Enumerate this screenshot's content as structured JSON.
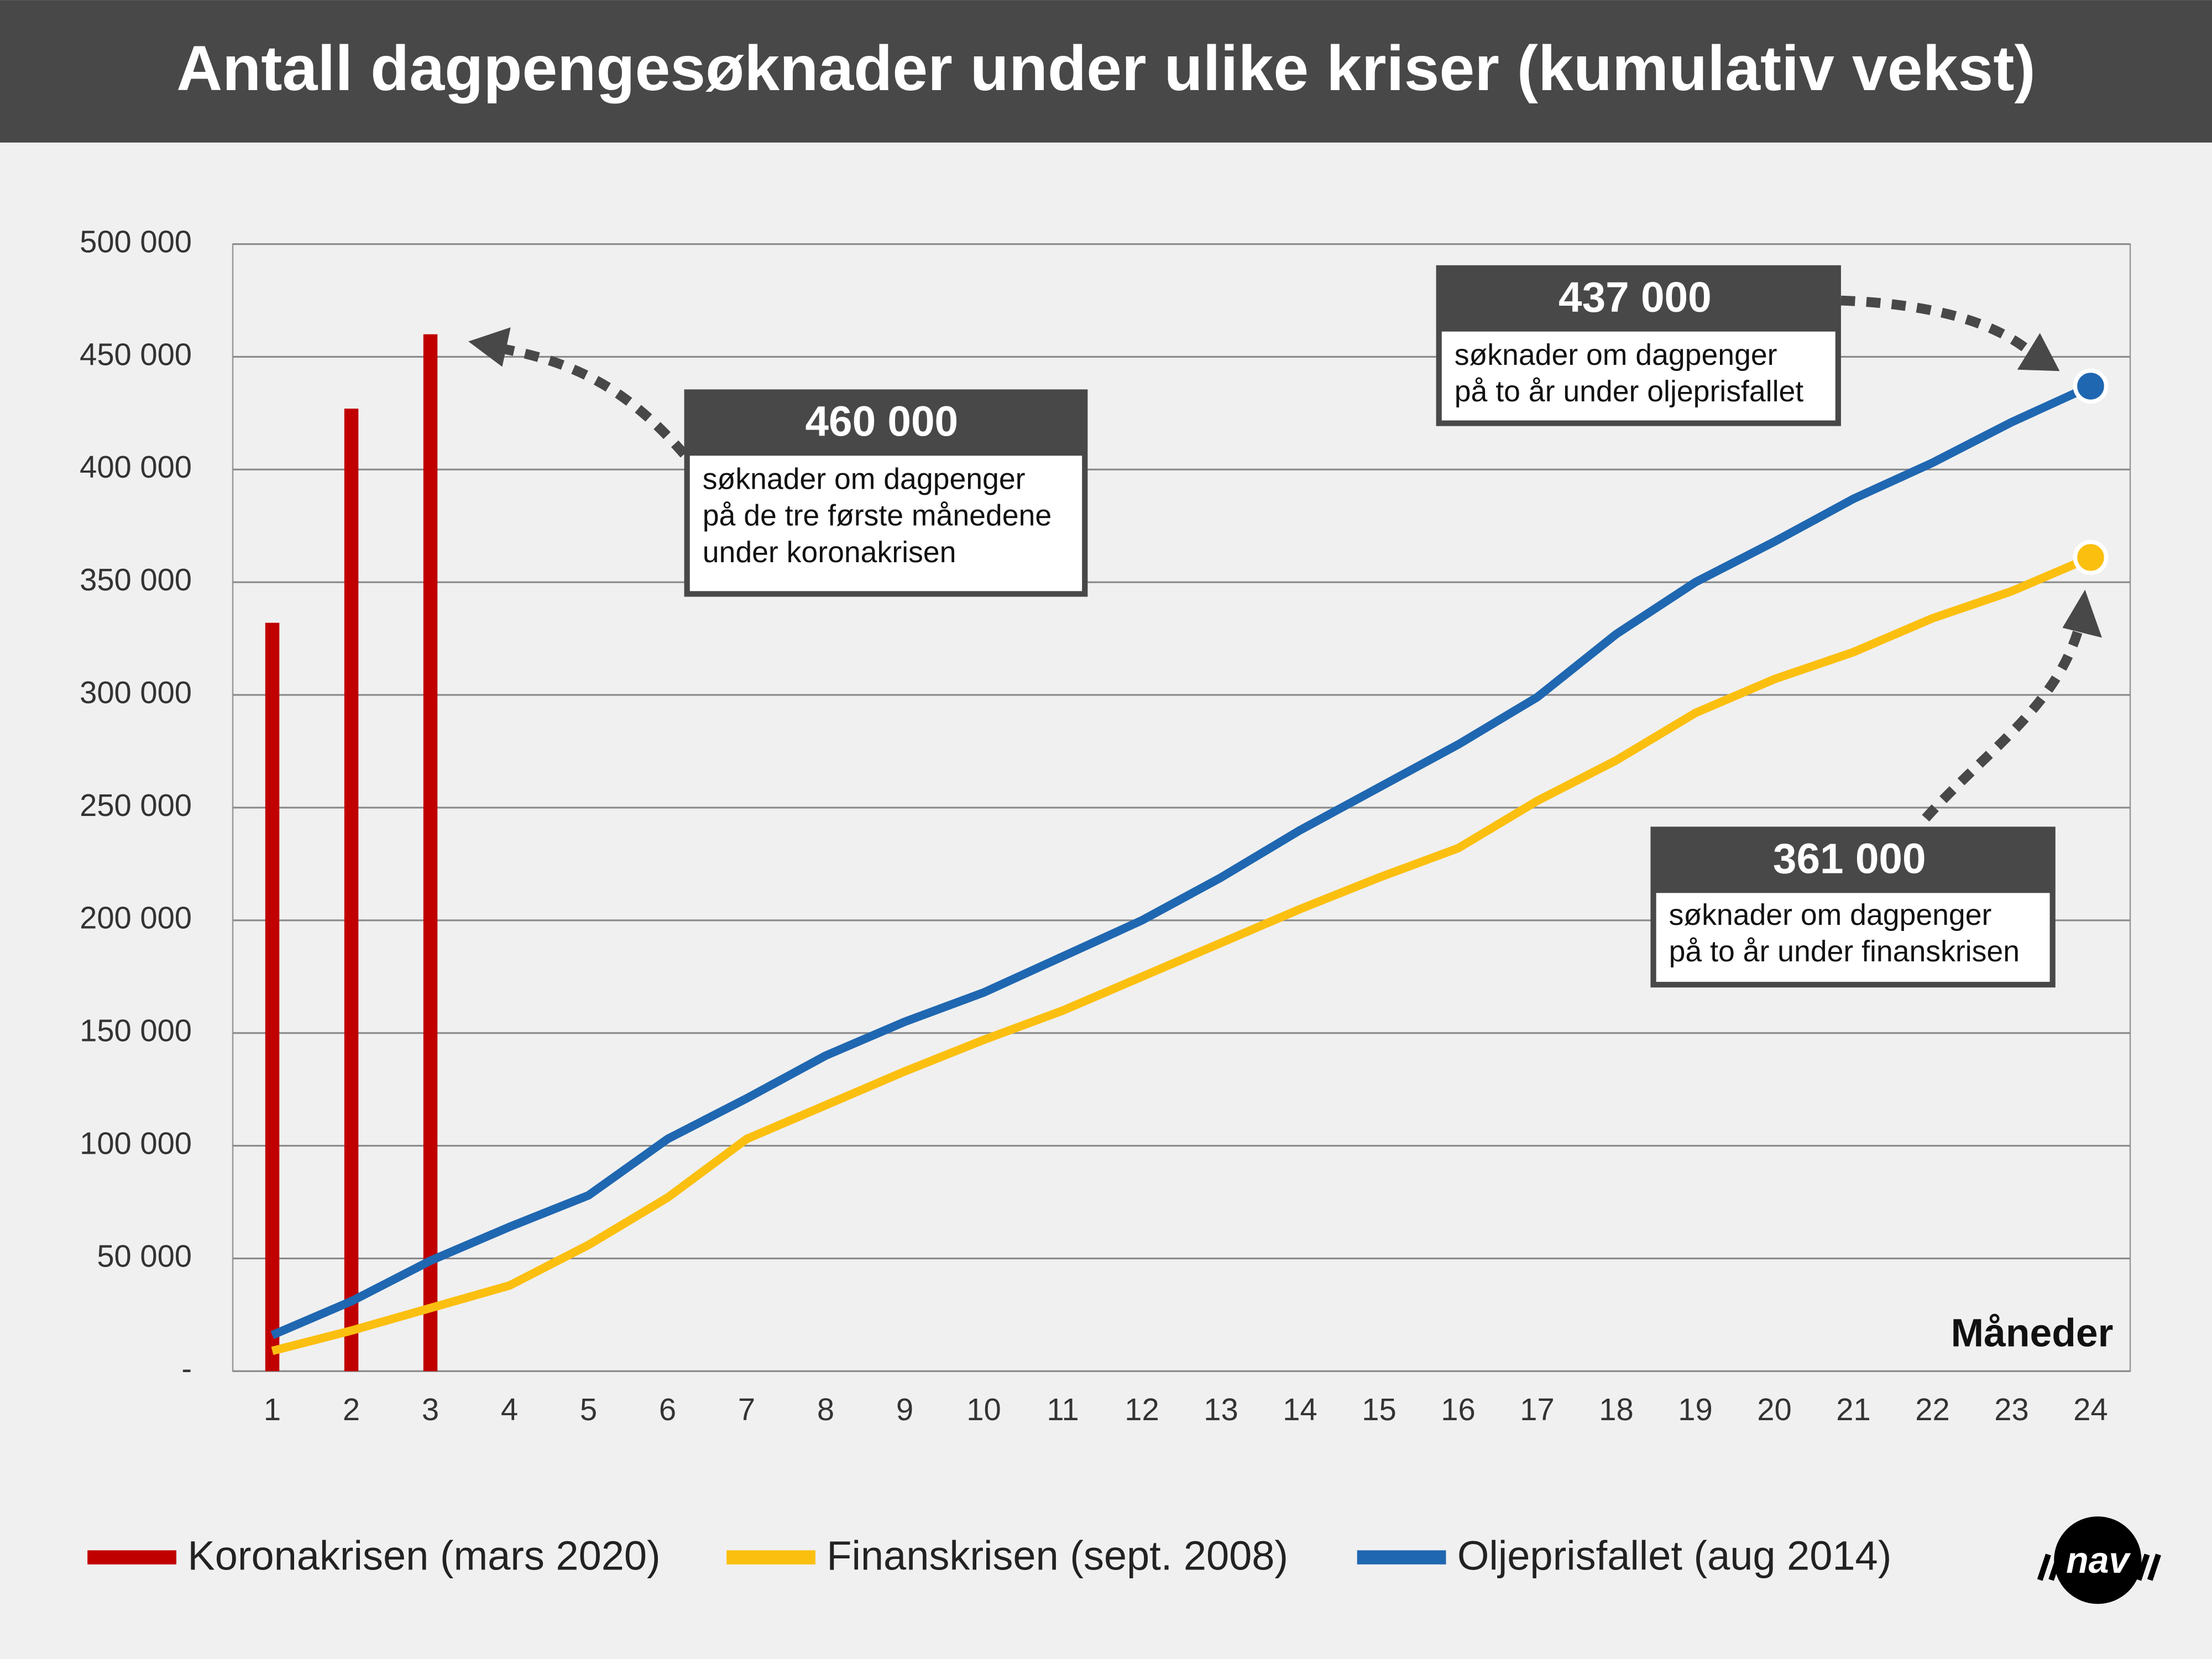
{
  "chart_data": {
    "type": "line",
    "title": "Antall dagpengesøknader under ulike kriser (kumulativ vekst)",
    "x_label": "Måneder",
    "categories": [
      "1",
      "2",
      "3",
      "4",
      "5",
      "6",
      "7",
      "8",
      "9",
      "10",
      "11",
      "12",
      "13",
      "14",
      "15",
      "16",
      "17",
      "18",
      "19",
      "20",
      "21",
      "22",
      "23",
      "24"
    ],
    "series": [
      {
        "name": "Koronakrisen (mars 2020)",
        "color": "#c00000",
        "type": "bar",
        "values": [
          332000,
          427000,
          460000,
          null,
          null,
          null,
          null,
          null,
          null,
          null,
          null,
          null,
          null,
          null,
          null,
          null,
          null,
          null,
          null,
          null,
          null,
          null,
          null,
          null
        ]
      },
      {
        "name": "Finanskrisen (sept. 2008)",
        "color": "#fbbf10",
        "type": "line",
        "values": [
          9000,
          18000,
          28000,
          38000,
          56000,
          77000,
          103000,
          118000,
          133000,
          147000,
          160000,
          175000,
          190000,
          205000,
          219000,
          232000,
          253000,
          271000,
          292000,
          307000,
          319000,
          334000,
          346000,
          361000
        ]
      },
      {
        "name": "Oljeprisfallet (aug 2014)",
        "color": "#1f67b1",
        "type": "line",
        "values": [
          16000,
          31000,
          49000,
          64000,
          78000,
          103000,
          121000,
          140000,
          155000,
          168000,
          184000,
          200000,
          219000,
          240000,
          259000,
          278000,
          299000,
          327000,
          350000,
          368000,
          387000,
          403000,
          421000,
          437000
        ]
      }
    ],
    "ylim": [
      0,
      500000
    ],
    "yticks": [
      {
        "value": 0,
        "label": "-"
      },
      {
        "value": 50000,
        "label": "50 000"
      },
      {
        "value": 100000,
        "label": "100 000"
      },
      {
        "value": 150000,
        "label": "150 000"
      },
      {
        "value": 200000,
        "label": "200 000"
      },
      {
        "value": 250000,
        "label": "250 000"
      },
      {
        "value": 300000,
        "label": "300 000"
      },
      {
        "value": 350000,
        "label": "350 000"
      },
      {
        "value": 400000,
        "label": "400 000"
      },
      {
        "value": 450000,
        "label": "450 000"
      },
      {
        "value": 500000,
        "label": "500 000"
      }
    ],
    "grid": true,
    "annotations": [
      {
        "value": "460 000",
        "lines": [
          "søknader om dagpenger",
          "på de tre første månedene",
          "under koronakrisen"
        ]
      },
      {
        "value": "437 000",
        "lines": [
          "søknader om dagpenger",
          "på to år under oljeprisfallet"
        ]
      },
      {
        "value": "361 000",
        "lines": [
          "søknader om dagpenger",
          "på to år under finanskrisen"
        ]
      }
    ],
    "logo": "nav"
  }
}
